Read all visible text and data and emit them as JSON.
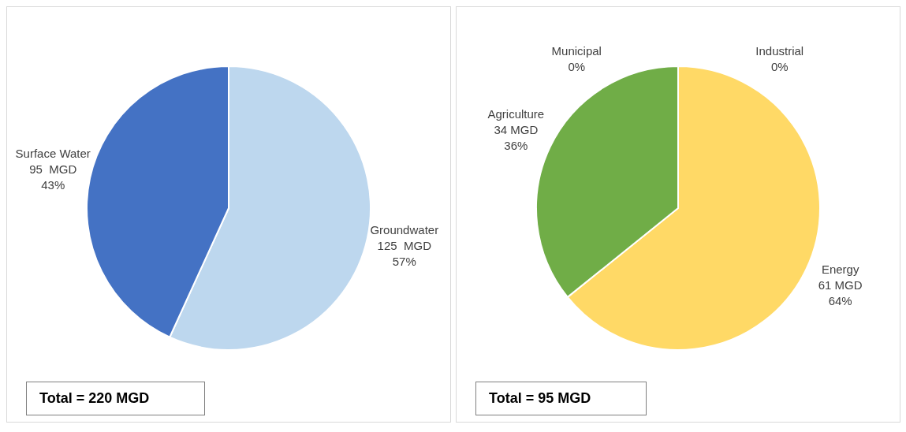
{
  "chart_data": [
    {
      "type": "pie",
      "categories": [
        "Groundwater",
        "Surface Water"
      ],
      "values": [
        125,
        95
      ],
      "colors": [
        "#bdd7ee",
        "#4472c4"
      ],
      "value_labels": [
        "125  MGD\n57%",
        "95  MGD\n43%"
      ],
      "annotations": [
        "Total = 220 MGD"
      ]
    },
    {
      "type": "pie",
      "categories": [
        "Industrial",
        "Energy",
        "Agriculture",
        "Municipal"
      ],
      "values": [
        0,
        61,
        34,
        0
      ],
      "colors": [
        "#a5a5a5",
        "#ffd966",
        "#70ad47",
        "#5b9bd5"
      ],
      "value_labels": [
        "0%",
        "61 MGD\n64%",
        "34 MGD\n36%",
        "0%"
      ],
      "annotations": [
        "Total = 95 MGD"
      ]
    }
  ]
}
